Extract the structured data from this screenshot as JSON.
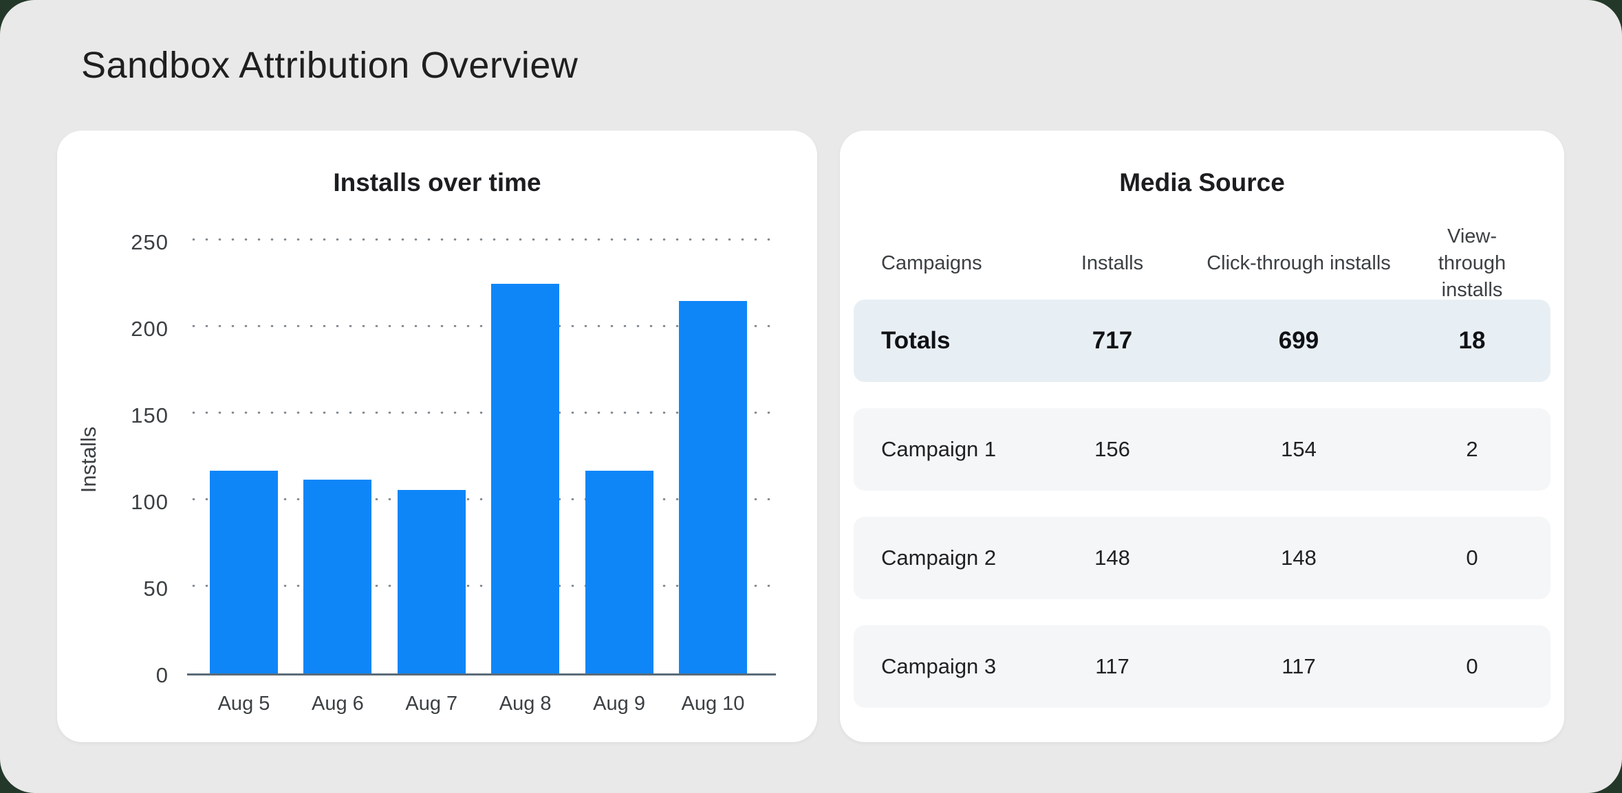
{
  "page": {
    "title": "Sandbox Attribution Overview"
  },
  "colors": {
    "canvas_bg": "#E9E9E9",
    "card_bg": "#FFFFFF",
    "bar_blue": "#0F86F8",
    "totals_row_bg": "#E8EFF4",
    "campaign_row_bg": "#F5F6F7",
    "axis_line": "#5A6B78"
  },
  "chart_data": {
    "type": "bar",
    "title": "Installs over time",
    "xlabel": "",
    "ylabel": "Installs",
    "categories": [
      "Aug 5",
      "Aug 6",
      "Aug 7",
      "Aug 8",
      "Aug 9",
      "Aug 10"
    ],
    "values": [
      117,
      112,
      106,
      225,
      117,
      215
    ],
    "yticks": [
      0,
      50,
      100,
      150,
      200,
      250
    ],
    "ylim": [
      0,
      250
    ],
    "grid": "horizontal-dotted",
    "legend": "none",
    "bar_color": "#0F86F8"
  },
  "table": {
    "title": "Media Source",
    "columns": [
      "Campaigns",
      "Installs",
      "Click-through installs",
      "View-through installs"
    ],
    "totals": {
      "label": "Totals",
      "installs": 717,
      "click_through": 699,
      "view_through": 18
    },
    "rows": [
      {
        "label": "Campaign 1",
        "installs": 156,
        "click_through": 154,
        "view_through": 2
      },
      {
        "label": "Campaign 2",
        "installs": 148,
        "click_through": 148,
        "view_through": 0
      },
      {
        "label": "Campaign 3",
        "installs": 117,
        "click_through": 117,
        "view_through": 0
      }
    ]
  }
}
